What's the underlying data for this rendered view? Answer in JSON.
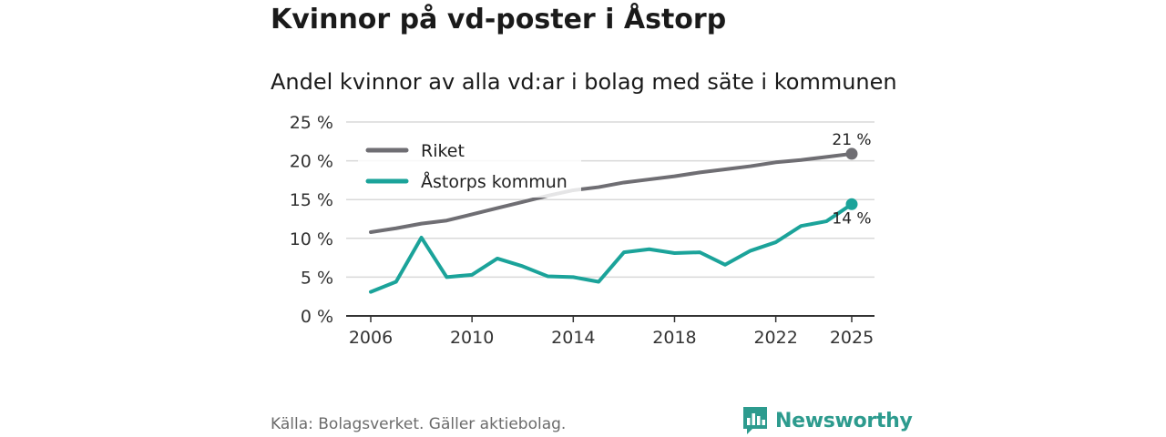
{
  "header": {
    "title": "Kvinnor på vd-poster i Åstorp",
    "subtitle": "Andel kvinnor av alla vd:ar i bolag med säte i kommunen"
  },
  "footer": {
    "source": "Källa: Bolagsverket. Gäller aktiebolag.",
    "brand": "Newsworthy",
    "brand_color": "#2d9b8e",
    "brand_icon": "bar-chart-speech-bubble-icon"
  },
  "chart_data": {
    "type": "line",
    "title": "Andel kvinnor av alla vd:ar i bolag med säte i kommunen",
    "xlabel": "",
    "ylabel": "",
    "x": [
      2006,
      2007,
      2008,
      2009,
      2010,
      2011,
      2012,
      2013,
      2014,
      2015,
      2016,
      2017,
      2018,
      2019,
      2020,
      2021,
      2022,
      2023,
      2024,
      2025
    ],
    "xticks": [
      "2006",
      "2010",
      "2014",
      "2018",
      "2022",
      "2025"
    ],
    "ylim": [
      0,
      25
    ],
    "yticks": [
      "0 %",
      "5 %",
      "10 %",
      "15 %",
      "20 %",
      "25 %"
    ],
    "ytick_values": [
      0,
      5,
      10,
      15,
      20,
      25
    ],
    "grid": true,
    "legend_position": "top-left",
    "series": [
      {
        "name": "Riket",
        "color": "#6f6e73",
        "values": [
          10.8,
          11.3,
          11.9,
          12.3,
          13.1,
          13.9,
          14.7,
          15.5,
          16.2,
          16.6,
          17.2,
          17.6,
          18.0,
          18.5,
          18.9,
          19.3,
          19.8,
          20.1,
          20.5,
          20.9
        ],
        "end_label": "21 %"
      },
      {
        "name": "Åstorps kommun",
        "color": "#1ba39a",
        "values": [
          3.1,
          4.4,
          10.1,
          5.0,
          5.3,
          7.4,
          6.4,
          5.1,
          5.0,
          4.4,
          8.2,
          8.6,
          8.1,
          8.2,
          6.6,
          8.4,
          9.5,
          11.6,
          12.2,
          14.4
        ],
        "end_label": "14 %"
      }
    ]
  }
}
